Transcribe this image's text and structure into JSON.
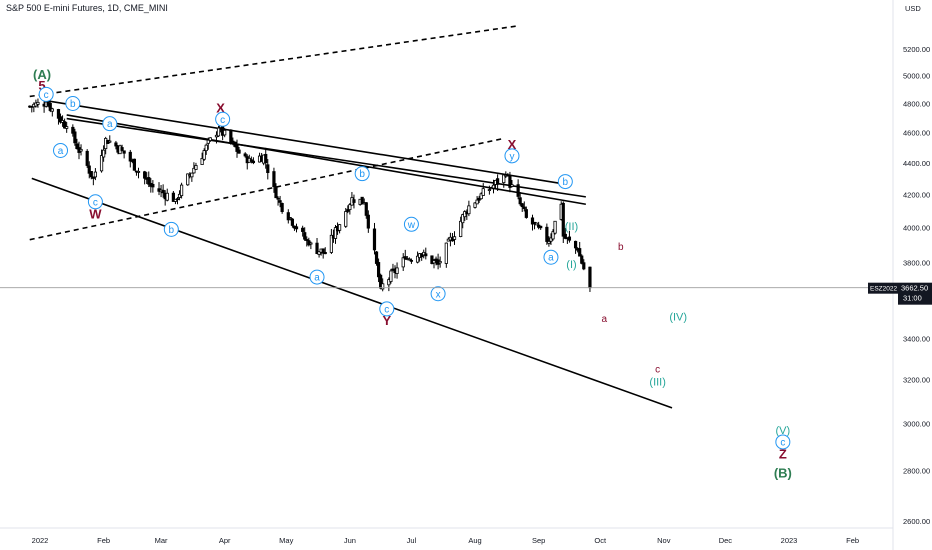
{
  "header": {
    "title": "S&P 500 E-mini Futures, 1D, CME_MINI"
  },
  "price_axis": {
    "currency": "USD",
    "ticks": [
      "5200.00",
      "5000.00",
      "4800.00",
      "4600.00",
      "4400.00",
      "4200.00",
      "4000.00",
      "3800.00",
      "3600.00",
      "3400.00",
      "3200.00",
      "3000.00",
      "2800.00",
      "2600.00"
    ],
    "tag_symbol": "ESZ2022",
    "tag_price": "3662.50",
    "tag_countdown": "31:00"
  },
  "time_axis": {
    "labels": [
      "2022",
      "Feb",
      "Mar",
      "Apr",
      "May",
      "Jun",
      "Jul",
      "Aug",
      "Sep",
      "Oct",
      "Nov",
      "Dec",
      "2023",
      "Feb"
    ]
  },
  "colors": {
    "up": "#ffffff",
    "down": "#000000",
    "wick": "#000000",
    "circle_label": "#2196f3",
    "dark_red": "#880e2f",
    "red_label": "#b71c1c",
    "cyan_label": "#26a69a",
    "green_label": "#2e7d52",
    "price_line": "#9e9e9e"
  },
  "chart_data": {
    "type": "candlestick",
    "title": "S&P 500 E-mini Futures, 1D, CME_MINI",
    "x_range": [
      "2021-12-27",
      "2023-02-20"
    ],
    "y_range": [
      2550,
      5380
    ],
    "y_scale": "log",
    "last_price": 3662.5,
    "price_path_keypoints": [
      {
        "date": "2021-12-27",
        "close": 4780
      },
      {
        "date": "2022-01-04",
        "close": 4810
      },
      {
        "date": "2022-01-14",
        "close": 4640
      },
      {
        "date": "2022-01-27",
        "close": 4300
      },
      {
        "date": "2022-02-02",
        "close": 4560
      },
      {
        "date": "2022-02-10",
        "close": 4480
      },
      {
        "date": "2022-02-24",
        "close": 4250
      },
      {
        "date": "2022-03-08",
        "close": 4170
      },
      {
        "date": "2022-03-29",
        "close": 4630
      },
      {
        "date": "2022-04-12",
        "close": 4400
      },
      {
        "date": "2022-04-20",
        "close": 4450
      },
      {
        "date": "2022-04-26",
        "close": 4180
      },
      {
        "date": "2022-05-12",
        "close": 3900
      },
      {
        "date": "2022-05-20",
        "close": 3850
      },
      {
        "date": "2022-06-02",
        "close": 4180
      },
      {
        "date": "2022-06-08",
        "close": 4150
      },
      {
        "date": "2022-06-16",
        "close": 3660
      },
      {
        "date": "2022-06-28",
        "close": 3820
      },
      {
        "date": "2022-07-05",
        "close": 3850
      },
      {
        "date": "2022-07-14",
        "close": 3790
      },
      {
        "date": "2022-07-29",
        "close": 4130
      },
      {
        "date": "2022-08-16",
        "close": 4320
      },
      {
        "date": "2022-08-26",
        "close": 4060
      },
      {
        "date": "2022-09-06",
        "close": 3920
      },
      {
        "date": "2022-09-12",
        "close": 4140
      },
      {
        "date": "2022-09-13",
        "close": 3950
      },
      {
        "date": "2022-09-20",
        "close": 3870
      },
      {
        "date": "2022-09-26",
        "close": 3662.5
      }
    ],
    "trendlines": [
      {
        "style": "solid",
        "from": {
          "date": "2022-01-04",
          "price": 4820
        },
        "to": {
          "date": "2022-09-16",
          "price": 4260
        }
      },
      {
        "style": "solid",
        "from": {
          "date": "2022-01-14",
          "price": 4720
        },
        "to": {
          "date": "2022-09-24",
          "price": 4140
        }
      },
      {
        "style": "solid",
        "from": {
          "date": "2022-01-14",
          "price": 4695
        },
        "to": {
          "date": "2022-09-24",
          "price": 4185
        }
      },
      {
        "style": "solid",
        "from": {
          "date": "2021-12-28",
          "price": 4300
        },
        "to": {
          "date": "2022-11-05",
          "price": 3070
        }
      },
      {
        "style": "dashed",
        "from": {
          "date": "2021-12-27",
          "price": 4850
        },
        "to": {
          "date": "2022-08-22",
          "price": 5380
        }
      },
      {
        "style": "dashed",
        "from": {
          "date": "2021-12-27",
          "price": 3930
        },
        "to": {
          "date": "2022-08-15",
          "price": 4560
        }
      }
    ],
    "wave_labels": [
      {
        "text": "(A)",
        "date": "2022-01-02",
        "price": 5010,
        "color": "green"
      },
      {
        "text": "5",
        "date": "2022-01-02",
        "price": 4930,
        "color": "dark_red"
      },
      {
        "text": "c",
        "date": "2022-01-04",
        "price": 4865,
        "color": "blue_circle"
      },
      {
        "text": "b",
        "date": "2022-01-17",
        "price": 4800,
        "color": "blue_circle"
      },
      {
        "text": "a",
        "date": "2022-01-11",
        "price": 4480,
        "color": "blue_circle"
      },
      {
        "text": "a",
        "date": "2022-02-04",
        "price": 4660,
        "color": "blue_circle"
      },
      {
        "text": "c",
        "date": "2022-01-28",
        "price": 4155,
        "color": "blue_circle"
      },
      {
        "text": "W",
        "date": "2022-01-28",
        "price": 4080,
        "color": "dark_red"
      },
      {
        "text": "b",
        "date": "2022-03-06",
        "price": 3990,
        "color": "blue_circle"
      },
      {
        "text": "X",
        "date": "2022-03-30",
        "price": 4770,
        "color": "dark_red"
      },
      {
        "text": "c",
        "date": "2022-03-31",
        "price": 4690,
        "color": "blue_circle"
      },
      {
        "text": "b",
        "date": "2022-06-07",
        "price": 4330,
        "color": "blue_circle"
      },
      {
        "text": "a",
        "date": "2022-05-16",
        "price": 3720,
        "color": "blue_circle"
      },
      {
        "text": "w",
        "date": "2022-07-01",
        "price": 4020,
        "color": "blue_circle"
      },
      {
        "text": "c",
        "date": "2022-06-19",
        "price": 3550,
        "color": "blue_circle"
      },
      {
        "text": "Y",
        "date": "2022-06-19",
        "price": 3490,
        "color": "dark_red"
      },
      {
        "text": "x",
        "date": "2022-07-14",
        "price": 3630,
        "color": "blue_circle"
      },
      {
        "text": "X",
        "date": "2022-08-19",
        "price": 4520,
        "color": "dark_red"
      },
      {
        "text": "y",
        "date": "2022-08-19",
        "price": 4445,
        "color": "blue_circle"
      },
      {
        "text": "b",
        "date": "2022-09-14",
        "price": 4280,
        "color": "blue_circle"
      },
      {
        "text": "(II)",
        "date": "2022-09-17",
        "price": 4010,
        "color": "cyan"
      },
      {
        "text": "b",
        "date": "2022-10-11",
        "price": 3890,
        "color": "dark_red"
      },
      {
        "text": "a",
        "date": "2022-09-07",
        "price": 3830,
        "color": "blue_circle"
      },
      {
        "text": "(I)",
        "date": "2022-09-17",
        "price": 3790,
        "color": "cyan"
      },
      {
        "text": "a",
        "date": "2022-10-03",
        "price": 3500,
        "color": "dark_red"
      },
      {
        "text": "(IV)",
        "date": "2022-11-08",
        "price": 3510,
        "color": "cyan"
      },
      {
        "text": "c",
        "date": "2022-10-29",
        "price": 3250,
        "color": "dark_red"
      },
      {
        "text": "(III)",
        "date": "2022-10-29",
        "price": 3190,
        "color": "cyan"
      },
      {
        "text": "(V)",
        "date": "2022-12-29",
        "price": 2970,
        "color": "cyan"
      },
      {
        "text": "c",
        "date": "2022-12-29",
        "price": 2920,
        "color": "blue_circle"
      },
      {
        "text": "Z",
        "date": "2022-12-29",
        "price": 2870,
        "color": "dark_red"
      },
      {
        "text": "(B)",
        "date": "2022-12-29",
        "price": 2790,
        "color": "green"
      }
    ]
  }
}
